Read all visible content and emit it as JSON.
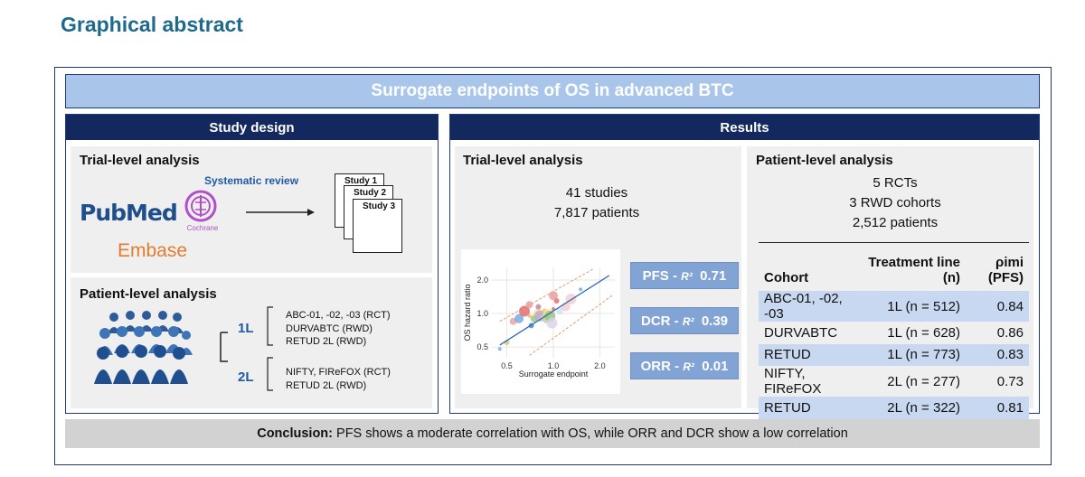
{
  "page_title": "Graphical abstract",
  "banner": "Surrogate endpoints of OS in advanced BTC",
  "study_design": {
    "header": "Study design",
    "trial_level": {
      "title": "Trial-level analysis",
      "systematic_review": "Systematic review",
      "sources": {
        "pubmed": "PubMed",
        "cochrane": "Cochrane",
        "embase": "Embase"
      },
      "studies": [
        "Study 1",
        "Study 2",
        "Study 3"
      ]
    },
    "patient_level": {
      "title": "Patient-level analysis",
      "line1": {
        "label": "1L",
        "items": [
          "ABC-01, -02, -03 (RCT)",
          "DURVABTC (RWD)",
          "RETUD 2L (RWD)"
        ]
      },
      "line2": {
        "label": "2L",
        "items": [
          "NIFTY, FIReFOX (RCT)",
          "RETUD 2L (RWD)"
        ]
      }
    }
  },
  "results": {
    "header": "Results",
    "trial_level": {
      "title": "Trial-level analysis",
      "studies": "41 studies",
      "patients": "7,817 patients",
      "r2": [
        {
          "endpoint": "PFS",
          "value": "0.71"
        },
        {
          "endpoint": "DCR",
          "value": "0.39"
        },
        {
          "endpoint": "ORR",
          "value": "0.01"
        }
      ],
      "r2_separator": " - ",
      "r2_symbol": "R²"
    },
    "patient_level": {
      "title": "Patient-level analysis",
      "rcts": "5 RCTs",
      "rwd": "3 RWD cohorts",
      "patients": "2,512 patients",
      "table": {
        "headers": [
          "Cohort",
          "Treatment line (n)",
          "ρimi (PFS)"
        ],
        "rows": [
          [
            "ABC-01, -02, -03",
            "1L (n = 512)",
            "0.84"
          ],
          [
            "DURVABTC",
            "1L (n = 628)",
            "0.86"
          ],
          [
            "RETUD",
            "1L (n = 773)",
            "0.83"
          ],
          [
            "NIFTY, FIReFOX",
            "2L (n = 277)",
            "0.73"
          ],
          [
            "RETUD",
            "2L (n = 322)",
            "0.81"
          ]
        ]
      }
    }
  },
  "conclusion": {
    "label": "Conclusion:",
    "text": " PFS shows a moderate correlation with OS, while ORR and DCR show a low correlation"
  },
  "chart_data": {
    "type": "scatter",
    "xlabel": "Surrogate endpoint",
    "ylabel": "OS hazard ratio",
    "x_ticks": [
      "0.5",
      "1.0",
      "2.0"
    ],
    "y_ticks": [
      "0.5",
      "1.0",
      "2.0"
    ],
    "xlim": [
      0.4,
      2.5
    ],
    "ylim": [
      0.4,
      2.6
    ],
    "log_scale": true,
    "points": [
      {
        "x": 0.45,
        "y": 0.48,
        "c": "#7aa6d8"
      },
      {
        "x": 0.5,
        "y": 0.55,
        "c": "#cccc66"
      },
      {
        "x": 0.55,
        "y": 0.85,
        "c": "#e8a0a0"
      },
      {
        "x": 0.6,
        "y": 0.9,
        "c": "#6fa8dc"
      },
      {
        "x": 0.65,
        "y": 1.05,
        "c": "#e06666"
      },
      {
        "x": 0.7,
        "y": 0.95,
        "c": "#f6b26b"
      },
      {
        "x": 0.72,
        "y": 0.78,
        "c": "#3d85c6"
      },
      {
        "x": 0.75,
        "y": 0.9,
        "c": "#93c47d"
      },
      {
        "x": 0.8,
        "y": 1.0,
        "c": "#ffd966"
      },
      {
        "x": 0.82,
        "y": 0.95,
        "c": "#b4a7d6"
      },
      {
        "x": 0.85,
        "y": 0.92,
        "c": "#ffd966"
      },
      {
        "x": 0.88,
        "y": 1.05,
        "c": "#f6b26b"
      },
      {
        "x": 0.9,
        "y": 0.88,
        "c": "#b6d7a8"
      },
      {
        "x": 0.92,
        "y": 1.0,
        "c": "#ffe599"
      },
      {
        "x": 0.95,
        "y": 0.95,
        "c": "#93c47d"
      },
      {
        "x": 1.0,
        "y": 1.1,
        "c": "#e06666"
      },
      {
        "x": 1.05,
        "y": 1.3,
        "c": "#e06666"
      },
      {
        "x": 1.1,
        "y": 1.05,
        "c": "#cfe2f3"
      },
      {
        "x": 1.2,
        "y": 1.15,
        "c": "#f4cccc"
      },
      {
        "x": 1.3,
        "y": 1.35,
        "c": "#f4cccc"
      },
      {
        "x": 1.5,
        "y": 1.65,
        "c": "#6fa8dc"
      },
      {
        "x": 0.8,
        "y": 1.15,
        "c": "#c27ba0"
      },
      {
        "x": 0.7,
        "y": 1.2,
        "c": "#ea9999"
      },
      {
        "x": 1.0,
        "y": 1.45,
        "c": "#ea9999"
      },
      {
        "x": 0.98,
        "y": 0.82,
        "c": "#d9d2e9"
      }
    ],
    "regression": [
      [
        0.45,
        0.52
      ],
      [
        2.3,
        2.2
      ]
    ],
    "ci_upper": [
      [
        0.45,
        0.85
      ],
      [
        1.8,
        2.5
      ]
    ],
    "ci_lower": [
      [
        0.7,
        0.42
      ],
      [
        2.4,
        1.45
      ]
    ]
  }
}
